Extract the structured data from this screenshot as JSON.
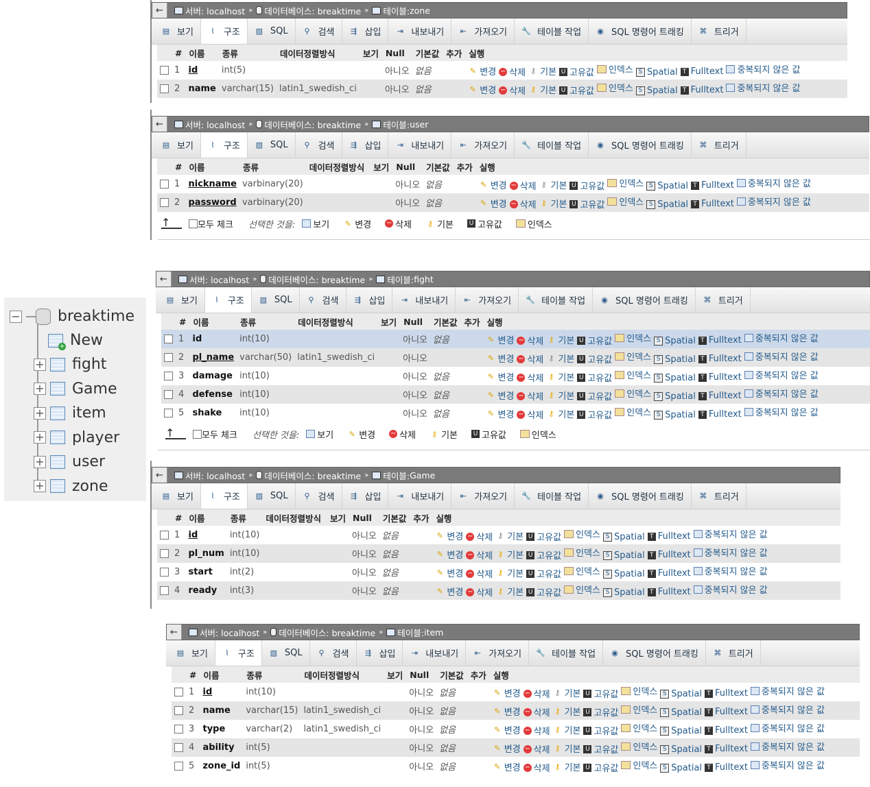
{
  "crumbs": {
    "server": "서버: localhost",
    "db": "데이터베이스: breaktime",
    "table_prefix": "테이블:"
  },
  "tabs": [
    "보기",
    "구조",
    "SQL",
    "검색",
    "삽입",
    "내보내기",
    "가져오기",
    "테이블 작업",
    "SQL 명령어 트래킹",
    "트리거"
  ],
  "headers": {
    "num": "#",
    "name": "이름",
    "type": "종류",
    "collation": "데이터정렬방식",
    "attrs": "보기",
    "null": "Null",
    "default": "기본값",
    "extra": "추가",
    "action": "실행"
  },
  "actions": {
    "edit": "변경",
    "drop": "삭제",
    "primary": "기본",
    "unique": "고유값",
    "index": "인덱스",
    "spatial": "Spatial",
    "fulltext": "Fulltext",
    "distinct": "중복되지 않은 값"
  },
  "footer": {
    "check_all": "모두 체크",
    "with_selected": "선택한 것을:",
    "browse": "보기",
    "edit": "변경",
    "drop": "삭제",
    "primary": "기본",
    "unique": "고유값",
    "index": "인덱스"
  },
  "tables": {
    "zone": {
      "name": "zone",
      "rows": [
        {
          "n": "1",
          "name": "id",
          "type": "int(5)",
          "coll": "",
          "null": "아니오",
          "def": "없음"
        },
        {
          "n": "2",
          "name": "name",
          "type": "varchar(15)",
          "coll": "latin1_swedish_ci",
          "null": "아니오",
          "def": "없음"
        }
      ]
    },
    "user": {
      "name": "user",
      "rows": [
        {
          "n": "1",
          "name": "nickname",
          "type": "varbinary(20)",
          "coll": "",
          "null": "아니오",
          "def": "없음"
        },
        {
          "n": "2",
          "name": "password",
          "type": "varbinary(20)",
          "coll": "",
          "null": "아니오",
          "def": "없음"
        }
      ]
    },
    "fight": {
      "name": "fight",
      "rows": [
        {
          "n": "1",
          "name": "id",
          "type": "int(10)",
          "coll": "",
          "null": "아니오",
          "def": "없음"
        },
        {
          "n": "2",
          "name": "pl_name",
          "type": "varchar(50)",
          "coll": "latin1_swedish_ci",
          "null": "아니오",
          "def": ""
        },
        {
          "n": "3",
          "name": "damage",
          "type": "int(10)",
          "coll": "",
          "null": "아니오",
          "def": "없음"
        },
        {
          "n": "4",
          "name": "defense",
          "type": "int(10)",
          "coll": "",
          "null": "아니오",
          "def": "없음"
        },
        {
          "n": "5",
          "name": "shake",
          "type": "int(10)",
          "coll": "",
          "null": "아니오",
          "def": "없음"
        }
      ]
    },
    "game": {
      "name": "Game",
      "rows": [
        {
          "n": "1",
          "name": "id",
          "type": "int(10)",
          "coll": "",
          "null": "아니오",
          "def": "없음"
        },
        {
          "n": "2",
          "name": "pl_num",
          "type": "int(10)",
          "coll": "",
          "null": "아니오",
          "def": "없음"
        },
        {
          "n": "3",
          "name": "start",
          "type": "int(2)",
          "coll": "",
          "null": "아니오",
          "def": "없음"
        },
        {
          "n": "4",
          "name": "ready",
          "type": "int(3)",
          "coll": "",
          "null": "아니오",
          "def": "없음"
        }
      ]
    },
    "item": {
      "name": "item",
      "rows": [
        {
          "n": "1",
          "name": "id",
          "type": "int(10)",
          "coll": "",
          "null": "아니오",
          "def": "없음"
        },
        {
          "n": "2",
          "name": "name",
          "type": "varchar(15)",
          "coll": "latin1_swedish_ci",
          "null": "아니오",
          "def": "없음"
        },
        {
          "n": "3",
          "name": "type",
          "type": "varchar(2)",
          "coll": "latin1_swedish_ci",
          "null": "아니오",
          "def": "없음"
        },
        {
          "n": "4",
          "name": "ability",
          "type": "int(5)",
          "coll": "",
          "null": "아니오",
          "def": "없음"
        },
        {
          "n": "5",
          "name": "zone_id",
          "type": "int(5)",
          "coll": "",
          "null": "아니오",
          "def": "없음"
        }
      ]
    }
  },
  "tree": {
    "db": "breaktime",
    "new": "New",
    "tables": [
      "fight",
      "Game",
      "item",
      "player",
      "user",
      "zone"
    ]
  }
}
